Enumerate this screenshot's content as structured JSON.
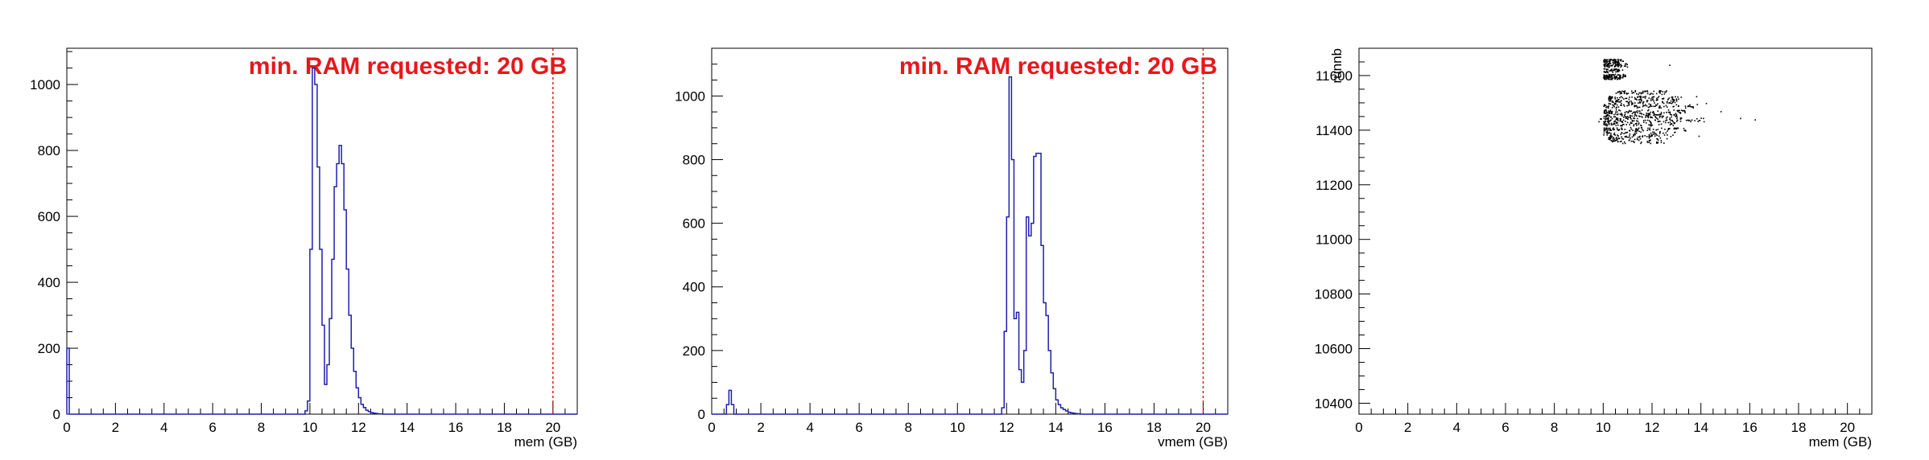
{
  "colors": {
    "histogram": "#1f1fb0",
    "threshold": "#e8171b",
    "axis": "#000000",
    "scatter": "#000000"
  },
  "chart_data": [
    {
      "type": "step-histogram",
      "xlabel": "mem (GB)",
      "ylabel": "",
      "xlim": [
        0,
        21
      ],
      "ylim": [
        0,
        1110
      ],
      "xticks": [
        "0",
        "2",
        "4",
        "6",
        "8",
        "10",
        "12",
        "14",
        "16",
        "18",
        "20"
      ],
      "yticks": [
        "0",
        "200",
        "400",
        "600",
        "800",
        "1000"
      ],
      "annotation": "min. RAM requested: 20 GB",
      "threshold_x": 20,
      "bin_width": 0.1,
      "bins": [
        [
          0.0,
          200
        ],
        [
          0.1,
          0
        ],
        [
          9.8,
          10
        ],
        [
          9.9,
          40
        ],
        [
          10.0,
          500
        ],
        [
          10.1,
          1050
        ],
        [
          10.2,
          1000
        ],
        [
          10.3,
          750
        ],
        [
          10.4,
          500
        ],
        [
          10.5,
          270
        ],
        [
          10.6,
          90
        ],
        [
          10.7,
          150
        ],
        [
          10.8,
          290
        ],
        [
          10.9,
          470
        ],
        [
          11.0,
          690
        ],
        [
          11.1,
          760
        ],
        [
          11.2,
          815
        ],
        [
          11.3,
          760
        ],
        [
          11.4,
          620
        ],
        [
          11.5,
          440
        ],
        [
          11.6,
          300
        ],
        [
          11.7,
          200
        ],
        [
          11.8,
          130
        ],
        [
          11.9,
          80
        ],
        [
          12.0,
          50
        ],
        [
          12.1,
          30
        ],
        [
          12.2,
          20
        ],
        [
          12.3,
          12
        ],
        [
          12.4,
          8
        ],
        [
          12.5,
          5
        ],
        [
          12.6,
          3
        ],
        [
          12.7,
          2
        ],
        [
          12.8,
          1
        ],
        [
          12.9,
          1
        ],
        [
          13.0,
          0
        ]
      ]
    },
    {
      "type": "step-histogram",
      "xlabel": "vmem (GB)",
      "ylabel": "",
      "xlim": [
        0,
        21
      ],
      "ylim": [
        0,
        1150
      ],
      "xticks": [
        "0",
        "2",
        "4",
        "6",
        "8",
        "10",
        "12",
        "14",
        "16",
        "18",
        "20"
      ],
      "yticks": [
        "0",
        "200",
        "400",
        "600",
        "800",
        "1000"
      ],
      "annotation": "min. RAM requested: 20 GB",
      "threshold_x": 20,
      "bin_width": 0.1,
      "bins": [
        [
          0.6,
          30
        ],
        [
          0.7,
          75
        ],
        [
          0.8,
          30
        ],
        [
          0.9,
          0
        ],
        [
          11.8,
          20
        ],
        [
          11.9,
          260
        ],
        [
          12.0,
          620
        ],
        [
          12.1,
          1060
        ],
        [
          12.2,
          800
        ],
        [
          12.3,
          300
        ],
        [
          12.4,
          320
        ],
        [
          12.5,
          140
        ],
        [
          12.6,
          100
        ],
        [
          12.7,
          200
        ],
        [
          12.8,
          620
        ],
        [
          12.9,
          560
        ],
        [
          13.0,
          600
        ],
        [
          13.1,
          810
        ],
        [
          13.2,
          820
        ],
        [
          13.3,
          820
        ],
        [
          13.4,
          530
        ],
        [
          13.5,
          350
        ],
        [
          13.6,
          310
        ],
        [
          13.7,
          200
        ],
        [
          13.8,
          130
        ],
        [
          13.9,
          80
        ],
        [
          14.0,
          45
        ],
        [
          14.1,
          30
        ],
        [
          14.2,
          20
        ],
        [
          14.3,
          15
        ],
        [
          14.4,
          10
        ],
        [
          14.5,
          6
        ],
        [
          14.6,
          4
        ],
        [
          14.7,
          3
        ],
        [
          14.8,
          2
        ],
        [
          14.9,
          1
        ],
        [
          15.0,
          0
        ]
      ]
    },
    {
      "type": "scatter",
      "xlabel": "mem (GB)",
      "ylabel": "runnb",
      "xlim": [
        0,
        21
      ],
      "ylim": [
        10360,
        11700
      ],
      "xticks": [
        "0",
        "2",
        "4",
        "6",
        "8",
        "10",
        "12",
        "14",
        "16",
        "18",
        "20"
      ],
      "yticks": [
        "10400",
        "10600",
        "10800",
        "11000",
        "11200",
        "11400",
        "11600"
      ],
      "point_groups": [
        {
          "y": 11655,
          "x_min": 10.0,
          "x_max": 10.8,
          "count": 60
        },
        {
          "y": 11640,
          "x_min": 10.0,
          "x_max": 11.0,
          "count": 60
        },
        {
          "y": 11620,
          "x_min": 10.0,
          "x_max": 10.8,
          "count": 40
        },
        {
          "y": 11600,
          "x_min": 10.0,
          "x_max": 10.9,
          "count": 60
        },
        {
          "y": 11595,
          "x_min": 10.0,
          "x_max": 10.7,
          "count": 40
        },
        {
          "y": 11540,
          "x_min": 10.5,
          "x_max": 12.6,
          "count": 60
        },
        {
          "y": 11520,
          "x_min": 10.2,
          "x_max": 13.3,
          "count": 80
        },
        {
          "y": 11505,
          "x_min": 10.2,
          "x_max": 13.0,
          "count": 70
        },
        {
          "y": 11490,
          "x_min": 10.0,
          "x_max": 14.0,
          "count": 80
        },
        {
          "y": 11470,
          "x_min": 10.0,
          "x_max": 13.5,
          "count": 90
        },
        {
          "y": 11455,
          "x_min": 10.0,
          "x_max": 13.0,
          "count": 90
        },
        {
          "y": 11440,
          "x_min": 9.8,
          "x_max": 14.2,
          "count": 100
        },
        {
          "y": 11425,
          "x_min": 10.0,
          "x_max": 13.0,
          "count": 70
        },
        {
          "y": 11405,
          "x_min": 10.0,
          "x_max": 13.4,
          "count": 80
        },
        {
          "y": 11390,
          "x_min": 10.0,
          "x_max": 13.0,
          "count": 50
        },
        {
          "y": 11375,
          "x_min": 10.2,
          "x_max": 12.8,
          "count": 60
        },
        {
          "y": 11360,
          "x_min": 10.3,
          "x_max": 12.5,
          "count": 40
        }
      ],
      "outliers": [
        [
          15.6,
          11445
        ],
        [
          16.2,
          11440
        ],
        [
          14.8,
          11470
        ],
        [
          13.8,
          11525
        ],
        [
          12.7,
          11640
        ],
        [
          14.2,
          11500
        ],
        [
          13.9,
          11380
        ]
      ]
    }
  ]
}
